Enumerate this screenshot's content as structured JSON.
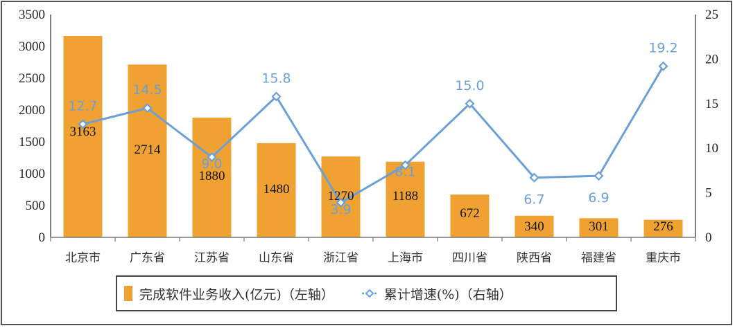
{
  "chart_data": {
    "type": "bar",
    "combo": "bar+line",
    "title": "",
    "categories": [
      "北京市",
      "广东省",
      "江苏省",
      "山东省",
      "浙江省",
      "上海市",
      "四川省",
      "陕西省",
      "福建省",
      "重庆市"
    ],
    "series": [
      {
        "name": "完成软件业务收入(亿元)（左轴）",
        "type": "bar",
        "axis": "left",
        "color": "#efa232",
        "values": [
          3163,
          2714,
          1880,
          1480,
          1270,
          1188,
          672,
          340,
          301,
          276
        ]
      },
      {
        "name": "累计增速(%)（右轴）",
        "type": "line",
        "axis": "right",
        "color": "#6a9fd8",
        "values": [
          12.7,
          14.5,
          9.0,
          15.8,
          3.9,
          8.1,
          15.0,
          6.7,
          6.9,
          19.2
        ]
      }
    ],
    "left_axis": {
      "ylim": [
        0,
        3500
      ],
      "ticks": [
        0,
        500,
        1000,
        1500,
        2000,
        2500,
        3000,
        3500
      ]
    },
    "right_axis": {
      "ylim": [
        0,
        25
      ],
      "ticks": [
        0,
        5,
        10,
        15,
        20,
        25
      ]
    },
    "xlabel": "",
    "ylabel": "",
    "grid": false,
    "legend_position": "bottom"
  },
  "legend": {
    "bar_label": "完成软件业务收入(亿元)（左轴）",
    "line_label": "累计增速(%)（右轴）"
  }
}
